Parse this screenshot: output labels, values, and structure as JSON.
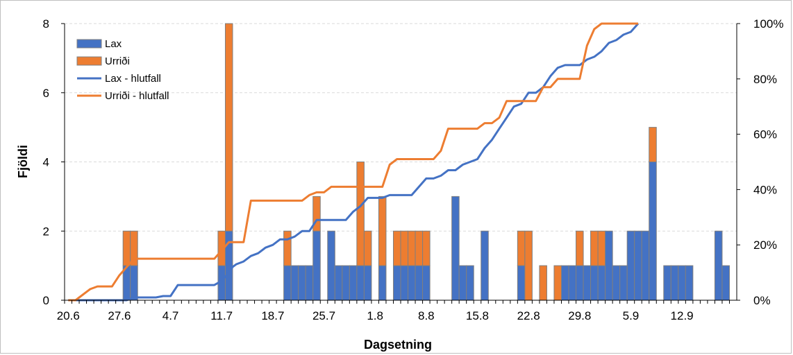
{
  "chart_data": {
    "type": "bar",
    "stacked": true,
    "xlabel": "Dagsetning",
    "ylabel": "Fjöldi",
    "y2label": "",
    "ylim": [
      0,
      8
    ],
    "y2lim": [
      0,
      100
    ],
    "yticks": [
      "0",
      "2",
      "4",
      "6",
      "8"
    ],
    "y2ticks": [
      "0%",
      "20%",
      "40%",
      "60%",
      "80%",
      "100%"
    ],
    "xtick_labels": [
      "20.6",
      "27.6",
      "4.7",
      "11.7",
      "18.7",
      "25.7",
      "1.8",
      "8.8",
      "15.8",
      "22.8",
      "29.8",
      "5.9",
      "12.9"
    ],
    "x_start_day": 1,
    "x_end_day": 92,
    "grid": "horizontal dashed",
    "legend_position": "top-left",
    "colors": {
      "lax": "#4472C4",
      "urridi": "#ED7D31",
      "bar_border": "#7f7f7f",
      "grid": "#d9d9d9",
      "axis": "#000000"
    },
    "legend": [
      "Lax",
      "Urriði",
      "Lax - hlutfall",
      "Urriði - hlutfall"
    ],
    "series": [
      {
        "name": "Lax",
        "kind": "bar",
        "points": [
          [
            3,
            0
          ],
          [
            4,
            0
          ],
          [
            7,
            0
          ],
          [
            9,
            1
          ],
          [
            10,
            1
          ],
          [
            11,
            0
          ],
          [
            12,
            0
          ],
          [
            13,
            0
          ],
          [
            15,
            0
          ],
          [
            16,
            0
          ],
          [
            17,
            0
          ],
          [
            18,
            0
          ],
          [
            19,
            0
          ],
          [
            20,
            0
          ],
          [
            21,
            0
          ],
          [
            22,
            1
          ],
          [
            23,
            2
          ],
          [
            24,
            0
          ],
          [
            25,
            0
          ],
          [
            26,
            0
          ],
          [
            27,
            0
          ],
          [
            28,
            0
          ],
          [
            29,
            0
          ],
          [
            30,
            0
          ],
          [
            31,
            1
          ],
          [
            32,
            1
          ],
          [
            33,
            1
          ],
          [
            34,
            1
          ],
          [
            35,
            2
          ],
          [
            36,
            0
          ],
          [
            37,
            2
          ],
          [
            38,
            1
          ],
          [
            39,
            1
          ],
          [
            40,
            1
          ],
          [
            41,
            1
          ],
          [
            42,
            1
          ],
          [
            44,
            1
          ],
          [
            46,
            1
          ],
          [
            47,
            1
          ],
          [
            48,
            1
          ],
          [
            49,
            1
          ],
          [
            50,
            1
          ],
          [
            51,
            0
          ],
          [
            52,
            0
          ],
          [
            53,
            0
          ],
          [
            54,
            3
          ],
          [
            55,
            1
          ],
          [
            56,
            1
          ],
          [
            58,
            2
          ],
          [
            59,
            0
          ],
          [
            60,
            0
          ],
          [
            61,
            0
          ],
          [
            62,
            0
          ],
          [
            63,
            1
          ],
          [
            64,
            0
          ],
          [
            65,
            0
          ],
          [
            66,
            0
          ],
          [
            67,
            0
          ],
          [
            68,
            0
          ],
          [
            69,
            1
          ],
          [
            70,
            1
          ],
          [
            71,
            1
          ],
          [
            72,
            1
          ],
          [
            73,
            1
          ],
          [
            74,
            1
          ],
          [
            75,
            2
          ],
          [
            76,
            1
          ],
          [
            77,
            1
          ],
          [
            78,
            2
          ],
          [
            79,
            2
          ],
          [
            80,
            2
          ],
          [
            81,
            4
          ],
          [
            82,
            0
          ],
          [
            83,
            1
          ],
          [
            84,
            1
          ],
          [
            85,
            1
          ],
          [
            86,
            1
          ],
          [
            87,
            0
          ],
          [
            88,
            0
          ],
          [
            89,
            0
          ],
          [
            90,
            2
          ],
          [
            91,
            1
          ],
          [
            92,
            0
          ]
        ]
      },
      {
        "name": "Urriði",
        "kind": "bar",
        "points": [
          [
            3,
            0
          ],
          [
            4,
            0
          ],
          [
            7,
            0
          ],
          [
            9,
            1
          ],
          [
            10,
            1
          ],
          [
            11,
            0
          ],
          [
            12,
            0
          ],
          [
            13,
            0
          ],
          [
            15,
            0
          ],
          [
            16,
            0
          ],
          [
            17,
            0
          ],
          [
            18,
            0
          ],
          [
            19,
            0
          ],
          [
            20,
            0
          ],
          [
            21,
            0
          ],
          [
            22,
            1
          ],
          [
            23,
            6
          ],
          [
            24,
            0
          ],
          [
            25,
            0
          ],
          [
            26,
            0
          ],
          [
            27,
            0
          ],
          [
            28,
            0
          ],
          [
            29,
            0
          ],
          [
            30,
            0
          ],
          [
            31,
            1
          ],
          [
            32,
            0
          ],
          [
            33,
            0
          ],
          [
            34,
            0
          ],
          [
            35,
            1
          ],
          [
            36,
            0
          ],
          [
            37,
            0
          ],
          [
            38,
            0
          ],
          [
            39,
            0
          ],
          [
            40,
            0
          ],
          [
            41,
            3
          ],
          [
            42,
            1
          ],
          [
            44,
            2
          ],
          [
            46,
            1
          ],
          [
            47,
            1
          ],
          [
            48,
            1
          ],
          [
            49,
            1
          ],
          [
            50,
            1
          ],
          [
            51,
            0
          ],
          [
            52,
            0
          ],
          [
            53,
            0
          ],
          [
            54,
            0
          ],
          [
            55,
            0
          ],
          [
            56,
            0
          ],
          [
            58,
            0
          ],
          [
            59,
            0
          ],
          [
            60,
            0
          ],
          [
            61,
            0
          ],
          [
            62,
            0
          ],
          [
            63,
            1
          ],
          [
            64,
            2
          ],
          [
            65,
            0
          ],
          [
            66,
            1
          ],
          [
            67,
            0
          ],
          [
            68,
            1
          ],
          [
            69,
            0
          ],
          [
            70,
            0
          ],
          [
            71,
            1
          ],
          [
            72,
            0
          ],
          [
            73,
            1
          ],
          [
            74,
            1
          ],
          [
            75,
            0
          ],
          [
            76,
            0
          ],
          [
            77,
            0
          ],
          [
            78,
            0
          ],
          [
            79,
            0
          ],
          [
            80,
            0
          ],
          [
            81,
            1
          ],
          [
            82,
            0
          ],
          [
            83,
            0
          ],
          [
            84,
            0
          ],
          [
            85,
            0
          ],
          [
            86,
            0
          ],
          [
            87,
            0
          ],
          [
            88,
            0
          ],
          [
            89,
            0
          ],
          [
            90,
            0
          ],
          [
            91,
            0
          ],
          [
            92,
            0
          ]
        ]
      },
      {
        "name": "Lax - hlutfall",
        "kind": "line",
        "axis": "right",
        "points": [
          [
            1,
            0
          ],
          [
            2,
            0
          ],
          [
            6,
            0
          ],
          [
            9,
            0
          ],
          [
            10,
            1
          ],
          [
            13,
            1
          ],
          [
            14,
            1.5
          ],
          [
            15,
            1.5
          ],
          [
            16,
            5.5
          ],
          [
            18,
            5.5
          ],
          [
            21,
            5.5
          ],
          [
            22,
            7
          ],
          [
            23,
            10
          ],
          [
            23.5,
            12
          ],
          [
            24,
            13
          ],
          [
            25,
            14
          ],
          [
            26,
            16
          ],
          [
            27,
            17
          ],
          [
            28,
            19
          ],
          [
            29,
            20
          ],
          [
            30,
            22
          ],
          [
            31,
            22
          ],
          [
            32,
            23
          ],
          [
            33,
            25
          ],
          [
            34,
            25
          ],
          [
            35,
            29
          ],
          [
            36,
            29
          ],
          [
            37,
            29
          ],
          [
            38,
            29
          ],
          [
            39,
            29
          ],
          [
            40,
            32
          ],
          [
            41,
            34
          ],
          [
            42,
            37
          ],
          [
            43,
            37
          ],
          [
            44,
            37
          ],
          [
            45,
            38
          ],
          [
            46,
            38
          ],
          [
            47,
            38
          ],
          [
            48,
            38
          ],
          [
            49,
            41
          ],
          [
            50,
            44
          ],
          [
            51,
            44
          ],
          [
            52,
            45
          ],
          [
            53,
            47
          ],
          [
            54,
            47
          ],
          [
            55,
            49
          ],
          [
            56,
            50
          ],
          [
            57,
            51
          ],
          [
            58,
            55
          ],
          [
            59,
            58
          ],
          [
            60,
            62
          ],
          [
            61,
            66
          ],
          [
            62,
            70
          ],
          [
            63,
            71
          ],
          [
            64,
            75
          ],
          [
            65,
            75
          ],
          [
            66,
            77
          ],
          [
            67,
            81
          ],
          [
            68,
            84
          ],
          [
            69,
            85
          ],
          [
            70,
            85
          ],
          [
            71,
            85
          ],
          [
            72,
            87
          ],
          [
            73,
            88
          ],
          [
            74,
            90
          ],
          [
            75,
            93
          ],
          [
            76,
            94
          ],
          [
            77,
            96
          ],
          [
            78,
            97
          ],
          [
            79,
            100
          ]
        ]
      },
      {
        "name": "Urriði - hlutfall",
        "kind": "line",
        "axis": "right",
        "points": [
          [
            1,
            0
          ],
          [
            2,
            0
          ],
          [
            3,
            2
          ],
          [
            4,
            4
          ],
          [
            5,
            5
          ],
          [
            6,
            5
          ],
          [
            7,
            5
          ],
          [
            8,
            9
          ],
          [
            9,
            12
          ],
          [
            10,
            15
          ],
          [
            11,
            15
          ],
          [
            15,
            15
          ],
          [
            20,
            15
          ],
          [
            21,
            15
          ],
          [
            22,
            18
          ],
          [
            23,
            21
          ],
          [
            24,
            21
          ],
          [
            25,
            21
          ],
          [
            26,
            36
          ],
          [
            27,
            36
          ],
          [
            28,
            36
          ],
          [
            29,
            36
          ],
          [
            30,
            36
          ],
          [
            31,
            36
          ],
          [
            32,
            36
          ],
          [
            33,
            36
          ],
          [
            34,
            38
          ],
          [
            35,
            39
          ],
          [
            36,
            39
          ],
          [
            37,
            41
          ],
          [
            38,
            41
          ],
          [
            39,
            41
          ],
          [
            40,
            41
          ],
          [
            41,
            41
          ],
          [
            42,
            41
          ],
          [
            43,
            41
          ],
          [
            44,
            41
          ],
          [
            45,
            49
          ],
          [
            46,
            51
          ],
          [
            47,
            51
          ],
          [
            48,
            51
          ],
          [
            49,
            51
          ],
          [
            50,
            51
          ],
          [
            51,
            51
          ],
          [
            52,
            54
          ],
          [
            53,
            62
          ],
          [
            54,
            62
          ],
          [
            55,
            62
          ],
          [
            56,
            62
          ],
          [
            57,
            62
          ],
          [
            58,
            64
          ],
          [
            59,
            64
          ],
          [
            60,
            66
          ],
          [
            61,
            72
          ],
          [
            62,
            72
          ],
          [
            63,
            72
          ],
          [
            64,
            72
          ],
          [
            65,
            72
          ],
          [
            66,
            77
          ],
          [
            67,
            77
          ],
          [
            68,
            80
          ],
          [
            69,
            80
          ],
          [
            70,
            80
          ],
          [
            71,
            80
          ],
          [
            72,
            92
          ],
          [
            73,
            98
          ],
          [
            74,
            100
          ],
          [
            75,
            100
          ],
          [
            79,
            100
          ]
        ]
      }
    ]
  }
}
